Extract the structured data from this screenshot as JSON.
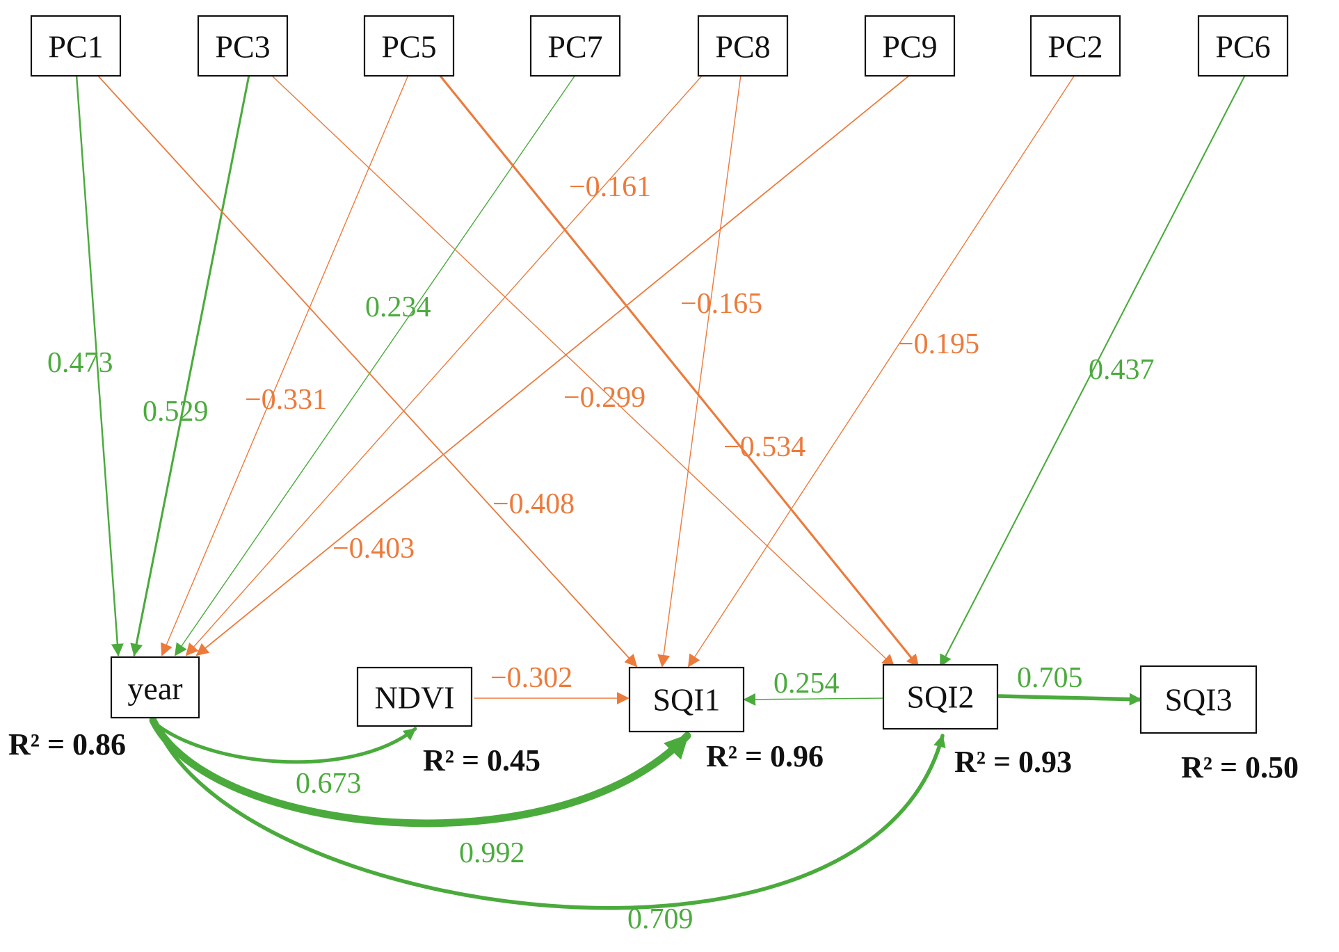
{
  "colors": {
    "positive": "#4aab3c",
    "negative": "#ec7a3b",
    "box_stroke": "#111111"
  },
  "nodes": {
    "PC1": "PC1",
    "PC3": "PC3",
    "PC5": "PC5",
    "PC7": "PC7",
    "PC8": "PC8",
    "PC9": "PC9",
    "PC2": "PC2",
    "PC6": "PC6",
    "year": "year",
    "NDVI": "NDVI",
    "SQI1": "SQI1",
    "SQI2": "SQI2",
    "SQI3": "SQI3"
  },
  "paths": [
    {
      "from": "PC1",
      "to": "year",
      "coef": "0.473",
      "sign": "positive"
    },
    {
      "from": "PC3",
      "to": "year",
      "coef": "0.529",
      "sign": "positive"
    },
    {
      "from": "PC5",
      "to": "year",
      "coef": "−0.331",
      "sign": "negative"
    },
    {
      "from": "PC7",
      "to": "year",
      "coef": "0.234",
      "sign": "positive"
    },
    {
      "from": "PC8",
      "to": "year",
      "coef": "−0.161",
      "sign": "negative"
    },
    {
      "from": "PC9",
      "to": "year",
      "coef": "−0.403",
      "sign": "negative"
    },
    {
      "from": "PC1",
      "to": "SQI1",
      "coef": "−0.408",
      "sign": "negative"
    },
    {
      "from": "PC8",
      "to": "SQI1",
      "coef": "−0.165",
      "sign": "negative"
    },
    {
      "from": "PC2",
      "to": "SQI1",
      "coef": "−0.195",
      "sign": "negative"
    },
    {
      "from": "PC3",
      "to": "SQI2",
      "coef": "−0.299",
      "sign": "negative"
    },
    {
      "from": "PC5",
      "to": "SQI2",
      "coef": "−0.534",
      "sign": "negative"
    },
    {
      "from": "PC6",
      "to": "SQI2",
      "coef": "0.437",
      "sign": "positive"
    },
    {
      "from": "NDVI",
      "to": "SQI1",
      "coef": "−0.302",
      "sign": "negative"
    },
    {
      "from": "SQI2",
      "to": "SQI1",
      "coef": "0.254",
      "sign": "positive"
    },
    {
      "from": "SQI2",
      "to": "SQI3",
      "coef": "0.705",
      "sign": "positive"
    },
    {
      "from": "year",
      "to": "NDVI",
      "coef": "0.673",
      "sign": "positive"
    },
    {
      "from": "year",
      "to": "SQI1",
      "coef": "0.992",
      "sign": "positive"
    },
    {
      "from": "year",
      "to": "SQI2",
      "coef": "0.709",
      "sign": "positive"
    }
  ],
  "r_squared": {
    "year": "R² = 0.86",
    "NDVI": "R² = 0.45",
    "SQI1": "R² = 0.96",
    "SQI2": "R² = 0.93",
    "SQI3": "R² = 0.50"
  }
}
